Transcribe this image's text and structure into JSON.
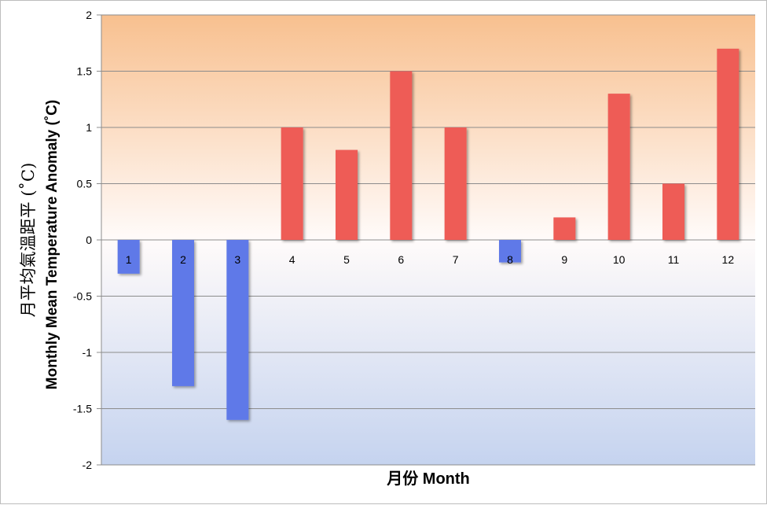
{
  "chart_data": {
    "type": "bar",
    "categories": [
      "1",
      "2",
      "3",
      "4",
      "5",
      "6",
      "7",
      "8",
      "9",
      "10",
      "11",
      "12"
    ],
    "values": [
      -0.3,
      -1.3,
      -1.6,
      1.0,
      0.8,
      1.5,
      1.0,
      -0.2,
      0.2,
      1.3,
      0.5,
      1.7
    ],
    "ylim": [
      -2,
      2
    ],
    "yticks": [
      "2",
      "1.5",
      "1",
      "0.5",
      "0",
      "-0.5",
      "-1",
      "-1.5",
      "-2"
    ],
    "ylabel_zh": "月平均氣溫距平 (˚C)",
    "ylabel": "Monthly Mean Temperature Anomaly (˚C)",
    "xlabel": "月份 Month",
    "grid": true,
    "colors": {
      "positive": "#ee5b57",
      "negative": "#5f79e8",
      "bg_top": "#f8c08f",
      "bg_mid": "#fffbfa",
      "bg_bottom": "#c5d3ef",
      "gridline": "#8c8c8c",
      "axis": "#8c8c8c"
    }
  }
}
